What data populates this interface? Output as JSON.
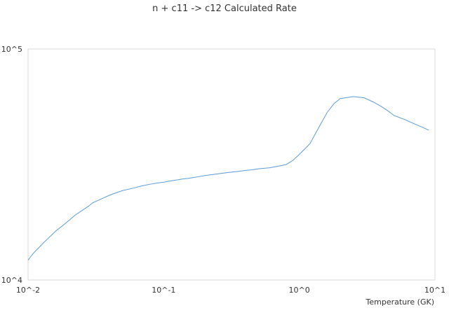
{
  "chart_data": {
    "type": "line",
    "title": "n + c11 -> c12 Calculated Rate",
    "xlabel": "Temperature (GK)",
    "ylabel": "",
    "x_scale": "log",
    "y_scale": "log",
    "xlim": [
      0.01,
      10
    ],
    "ylim": [
      10000,
      100000
    ],
    "x_ticks": [
      {
        "value": 0.01,
        "label": "10^-2"
      },
      {
        "value": 0.1,
        "label": "10^-1"
      },
      {
        "value": 1,
        "label": "10^0"
      },
      {
        "value": 10,
        "label": "10^1"
      }
    ],
    "y_ticks": [
      {
        "value": 10000,
        "label": "10^4"
      },
      {
        "value": 100000,
        "label": "10^5"
      }
    ],
    "grid": false,
    "legend": "none",
    "series_color": "#5b9bd5",
    "frame_color": "#d9d9d9",
    "series": [
      {
        "x": [
          0.01,
          0.011,
          0.012,
          0.013,
          0.014,
          0.015,
          0.016,
          0.018,
          0.02,
          0.022,
          0.025,
          0.028,
          0.03,
          0.035,
          0.04,
          0.045,
          0.05,
          0.06,
          0.07,
          0.08,
          0.09,
          0.1,
          0.11,
          0.12,
          0.13,
          0.14,
          0.15,
          0.16,
          0.18,
          0.2,
          0.25,
          0.3,
          0.35,
          0.4,
          0.45,
          0.5,
          0.6,
          0.7,
          0.8,
          0.9,
          1.0,
          1.1,
          1.2,
          1.3,
          1.4,
          1.5,
          1.6,
          1.8,
          2.0,
          2.5,
          3.0,
          3.5,
          4.0,
          4.5,
          5.0,
          6.0,
          7.0,
          8.0,
          9.0
        ],
        "y": [
          12200,
          13100,
          13800,
          14500,
          15100,
          15700,
          16300,
          17200,
          18100,
          19000,
          20000,
          20900,
          21600,
          22500,
          23300,
          23900,
          24400,
          25000,
          25600,
          26000,
          26300,
          26500,
          26800,
          27000,
          27200,
          27400,
          27500,
          27700,
          28000,
          28300,
          28800,
          29200,
          29500,
          29800,
          30000,
          30300,
          30600,
          31100,
          31600,
          33000,
          35000,
          37000,
          39000,
          42500,
          46000,
          49500,
          53000,
          58000,
          61000,
          62200,
          61500,
          59000,
          56500,
          54000,
          51500,
          49500,
          47500,
          46000,
          44500
        ]
      }
    ]
  }
}
